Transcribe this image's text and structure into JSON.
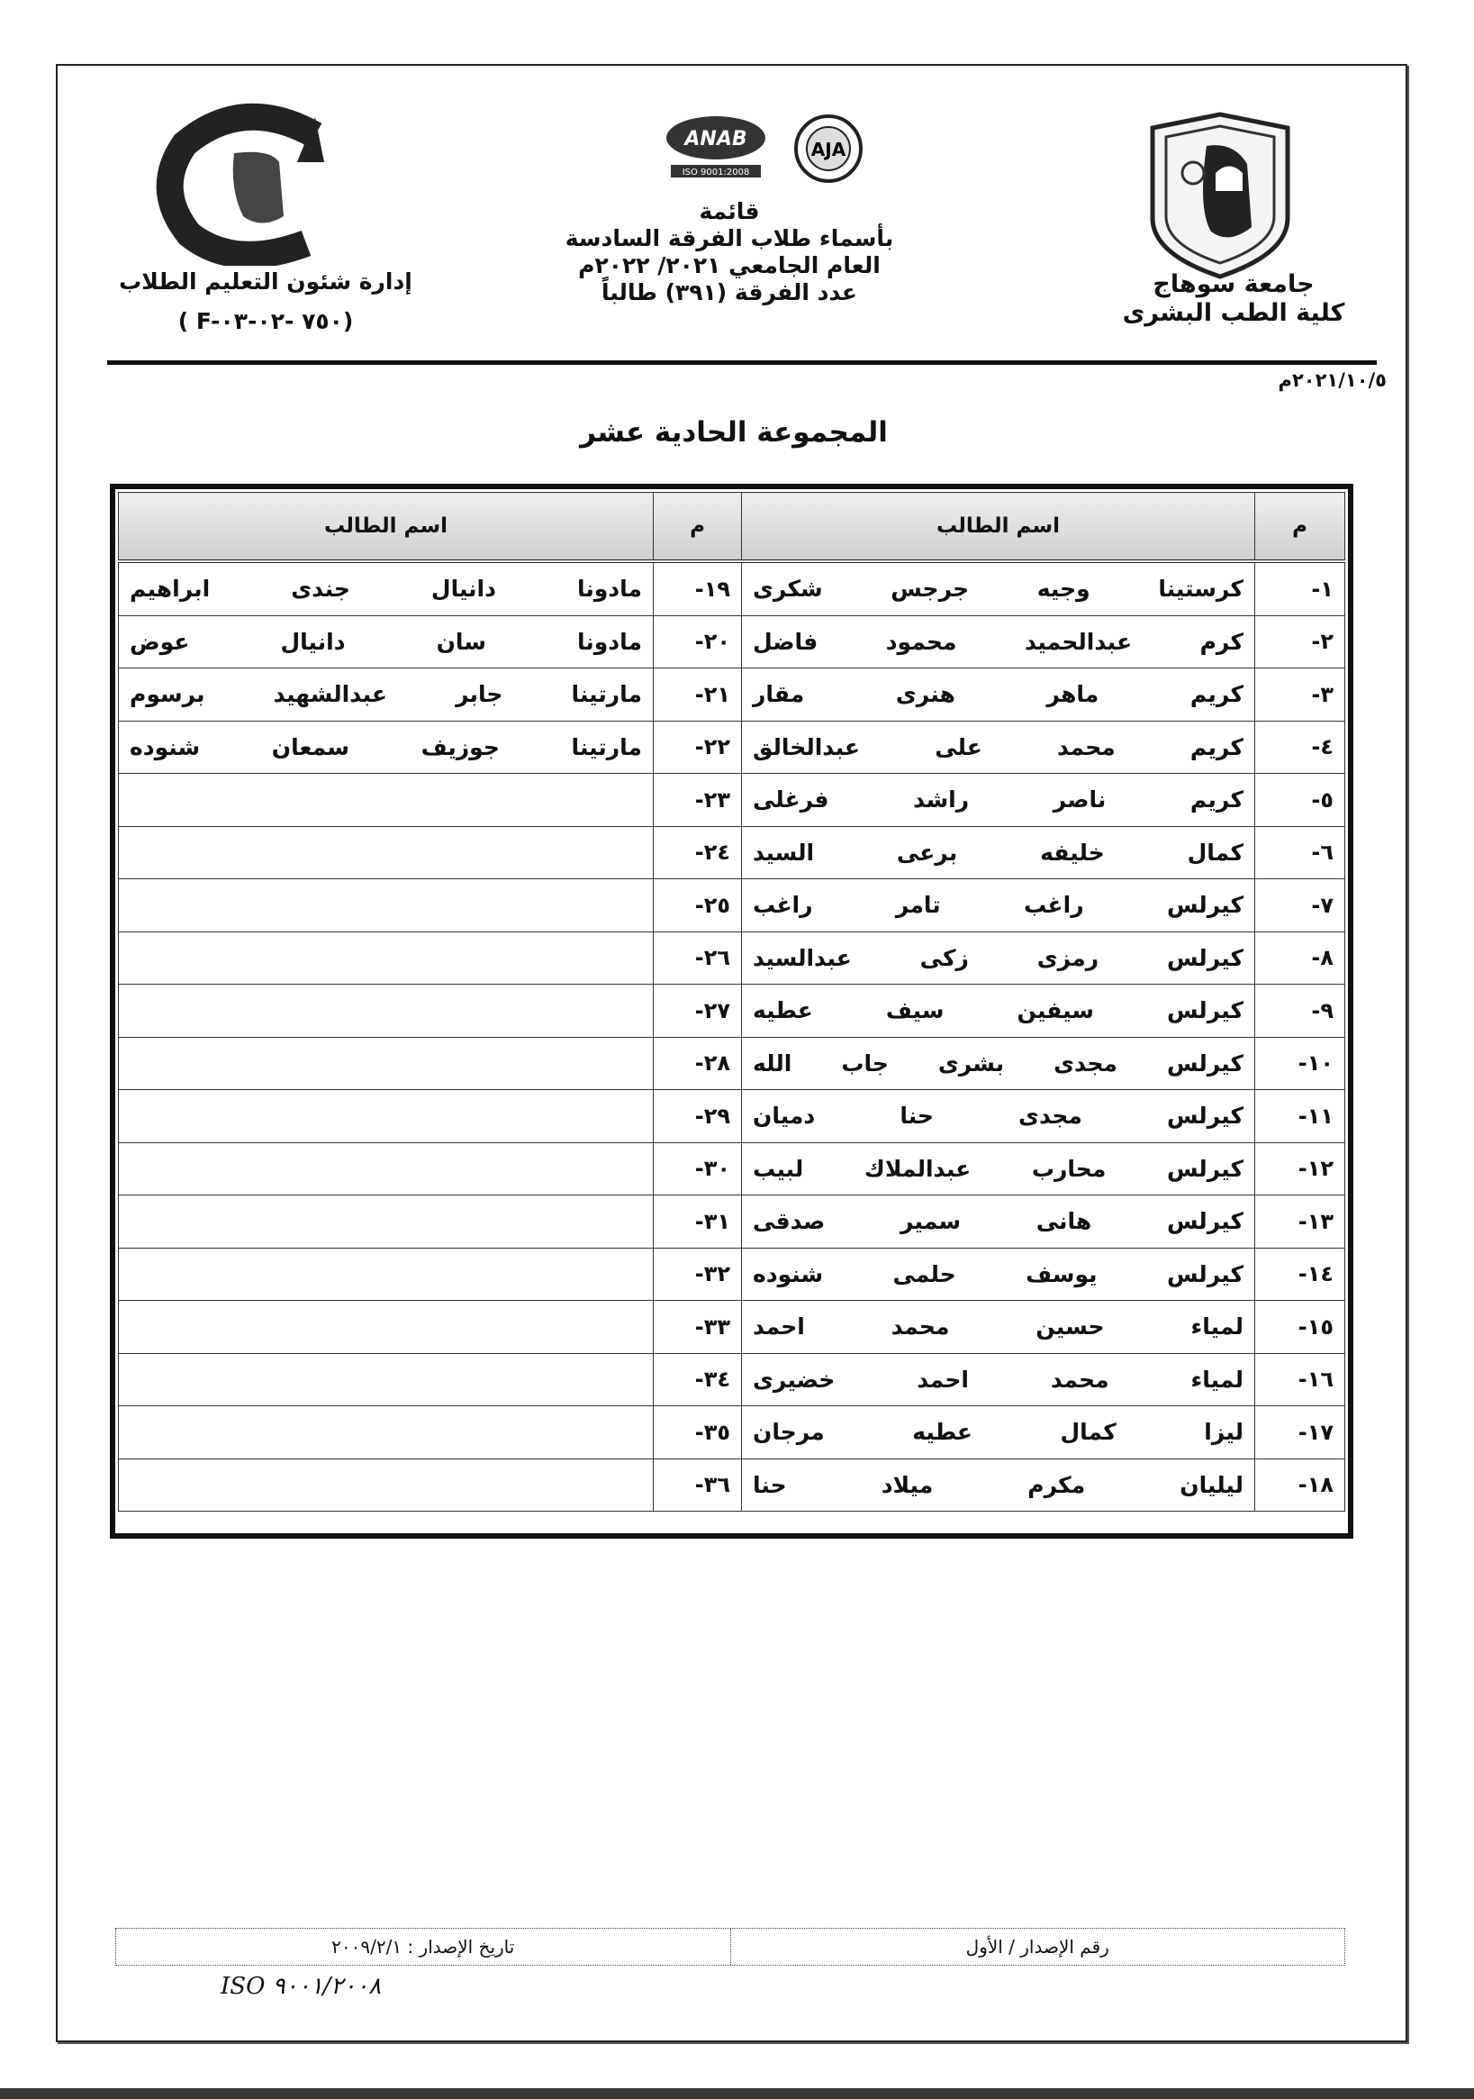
{
  "header": {
    "right": {
      "university": "جامعة سوهاج",
      "faculty": "كلية الطب البشرى"
    },
    "center": {
      "line1": "قائمة",
      "line2": "بأسماء طلاب الفرقة السادسة",
      "line3": "العام الجامعي ٢٠٢١/ ٢٠٢٢م",
      "line4": "عدد الفرقة (٣٩١) طالباً"
    },
    "left": {
      "department": "إدارة شئون التعليم الطلاب",
      "form_code": "( F-٧٥٠ -٠٢-٠٣)"
    },
    "logos": {
      "right_seal": "جامعة سوهاج",
      "anab": "ANAB",
      "anab_iso": "ISO 9001:2008",
      "aja": "AJA",
      "left_logo_top": "جامعة سوهاج",
      "left_logo_bottom": "كلية الطب"
    }
  },
  "date": "٢٠٢١/١٠/٥م",
  "title": "المجموعة الحادية عشر",
  "table": {
    "headers": {
      "num": "م",
      "name": "اسم الطالب"
    },
    "rows": [
      {
        "num_r": "١-",
        "name_r": "كرستينا وجيه جرجس شكرى",
        "num_l": "١٩-",
        "name_l": "مادونا دانيال جندى ابراهيم"
      },
      {
        "num_r": "٢-",
        "name_r": "كرم عبدالحميد محمود فاضل",
        "num_l": "٢٠-",
        "name_l": "مادونا سان دانيال عوض"
      },
      {
        "num_r": "٣-",
        "name_r": "كريم ماهر هنرى مقار",
        "num_l": "٢١-",
        "name_l": "مارتينا جابر عبدالشهيد برسوم"
      },
      {
        "num_r": "٤-",
        "name_r": "كريم محمد على عبدالخالق",
        "num_l": "٢٢-",
        "name_l": "مارتينا جوزيف سمعان شنوده"
      },
      {
        "num_r": "٥-",
        "name_r": "كريم ناصر راشد فرغلى",
        "num_l": "٢٣-",
        "name_l": ""
      },
      {
        "num_r": "٦-",
        "name_r": "كمال خليفه برعى السيد",
        "num_l": "٢٤-",
        "name_l": ""
      },
      {
        "num_r": "٧-",
        "name_r": "كيرلس راغب تامر راغب",
        "num_l": "٢٥-",
        "name_l": ""
      },
      {
        "num_r": "٨-",
        "name_r": "كيرلس رمزى زكى عبدالسيد",
        "num_l": "٢٦-",
        "name_l": ""
      },
      {
        "num_r": "٩-",
        "name_r": "كيرلس سيفين سيف عطيه",
        "num_l": "٢٧-",
        "name_l": ""
      },
      {
        "num_r": "١٠-",
        "name_r": "كيرلس مجدى بشرى جاب الله",
        "num_l": "٢٨-",
        "name_l": ""
      },
      {
        "num_r": "١١-",
        "name_r": "كيرلس مجدى حنا دميان",
        "num_l": "٢٩-",
        "name_l": ""
      },
      {
        "num_r": "١٢-",
        "name_r": "كيرلس محارب عبدالملاك لبيب",
        "num_l": "٣٠-",
        "name_l": ""
      },
      {
        "num_r": "١٣-",
        "name_r": "كيرلس هانى سمير صدقى",
        "num_l": "٣١-",
        "name_l": ""
      },
      {
        "num_r": "١٤-",
        "name_r": "كيرلس يوسف حلمى شنوده",
        "num_l": "٣٢-",
        "name_l": ""
      },
      {
        "num_r": "١٥-",
        "name_r": "لمياء حسين محمد احمد",
        "num_l": "٣٣-",
        "name_l": ""
      },
      {
        "num_r": "١٦-",
        "name_r": "لمياء محمد احمد خضيرى",
        "num_l": "٣٤-",
        "name_l": ""
      },
      {
        "num_r": "١٧-",
        "name_r": "ليزا كمال عطيه مرجان",
        "num_l": "٣٥-",
        "name_l": ""
      },
      {
        "num_r": "١٨-",
        "name_r": "ليليان مكرم ميلاد حنا",
        "num_l": "٣٦-",
        "name_l": ""
      }
    ]
  },
  "footer": {
    "issue_number": "رقم الإصدار / الأول",
    "issue_date": "تاريخ الإصدار : ٢٠٠٩/٢/١",
    "iso": "ISO ٩٠٠١/٢٠٠٨"
  }
}
